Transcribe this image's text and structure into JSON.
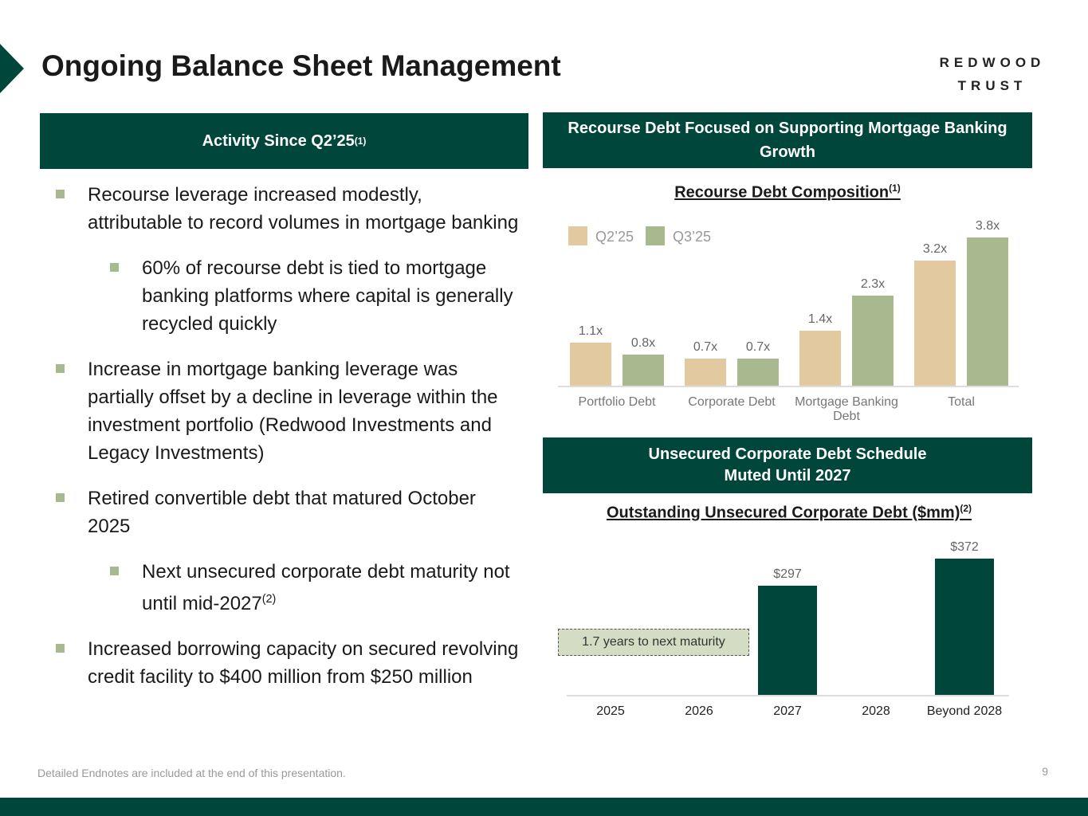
{
  "header": {
    "title": "Ongoing Balance Sheet Management",
    "logo_top": "REDWOOD",
    "logo_bottom": "TRUST"
  },
  "left": {
    "heading": "Activity Since Q2’25",
    "heading_note": "(1)",
    "bullets": [
      {
        "text": "Recourse leverage increased modestly, attributable to record volumes in mortgage banking",
        "sub": [
          {
            "text": "60% of recourse debt is tied to mortgage banking platforms where capital is generally recycled quickly"
          }
        ]
      },
      {
        "text": "Increase in mortgage banking leverage was partially offset by a decline in leverage within the investment portfolio (Redwood Investments and Legacy Investments)"
      },
      {
        "text": "Retired convertible debt that matured October 2025",
        "sub": [
          {
            "text": "Next unsecured corporate debt maturity not until mid-2027",
            "note": "(2)"
          }
        ]
      },
      {
        "text": "Increased borrowing capacity on secured revolving credit facility to $400 million from $250 million"
      }
    ]
  },
  "right": {
    "heading_1": "Recourse Debt Focused on Supporting Mortgage Banking Growth",
    "heading_2": "Unsecured Corporate Debt Schedule Muted Until 2027"
  },
  "chart_data": [
    {
      "type": "bar",
      "title": "Recourse Debt Composition",
      "title_note": "(1)",
      "categories": [
        "Portfolio Debt",
        "Corporate Debt",
        "Mortgage Banking Debt",
        "Total"
      ],
      "series": [
        {
          "name": "Q2’25",
          "color": "#e2c9a0",
          "values": [
            1.1,
            0.7,
            1.4,
            3.2
          ],
          "value_labels": [
            "1.1x",
            "0.7x",
            "1.4x",
            "3.2x"
          ]
        },
        {
          "name": "Q3’25",
          "color": "#a9b98f",
          "values": [
            0.8,
            0.7,
            2.3,
            3.8
          ],
          "value_labels": [
            "0.8x",
            "0.7x",
            "2.3x",
            "3.8x"
          ]
        }
      ]
    },
    {
      "type": "bar",
      "title": "Outstanding Unsecured Corporate Debt ($mm)",
      "title_note": "(2)",
      "categories": [
        "2025",
        "2026",
        "2027",
        "2028",
        "Beyond 2028"
      ],
      "values": [
        null,
        null,
        297,
        null,
        372
      ],
      "value_labels": [
        null,
        null,
        "$297",
        null,
        "$372"
      ],
      "color": "#00463a",
      "annotation": "1.7 years to next maturity"
    }
  ],
  "footer": {
    "note": "Detailed Endnotes are included at the end of this presentation.",
    "page": "9"
  }
}
